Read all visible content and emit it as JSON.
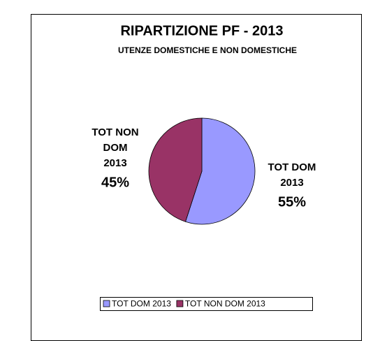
{
  "chart_data": {
    "type": "pie",
    "title": "RIPARTIZIONE PF  -  2013",
    "subtitle": "UTENZE DOMESTICHE E NON DOMESTICHE",
    "categories": [
      "TOT DOM 2013",
      "TOT NON DOM 2013"
    ],
    "values": [
      55,
      45
    ],
    "value_labels": [
      "55%",
      "45%"
    ],
    "colors": [
      "#9999ff",
      "#993366"
    ],
    "legend": "bottom"
  }
}
